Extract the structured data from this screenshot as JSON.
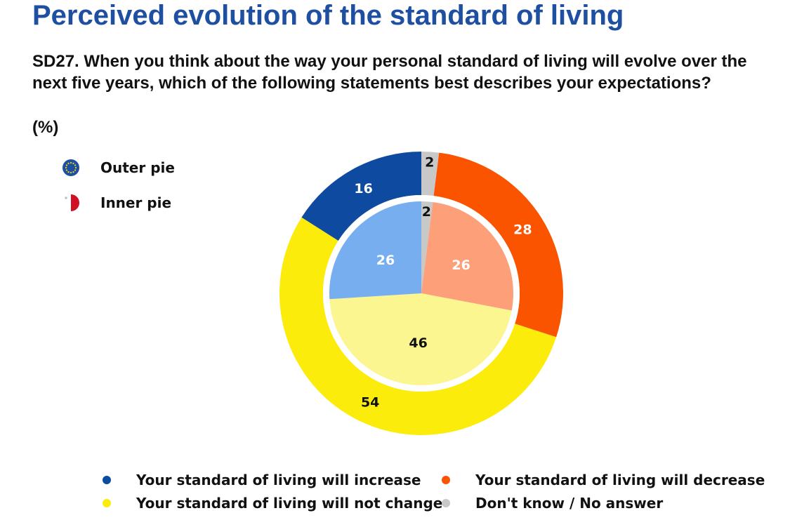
{
  "title": "Perceived evolution of the standard of living",
  "question": "SD27. When you think about the way your personal standard of living will evolve over the next five years, which of the following statements best describes your expectations?",
  "unit": "(%)",
  "pie_legend": {
    "outer_label": "Outer pie",
    "outer_icon": "eu-flag-icon",
    "inner_label": "Inner pie",
    "inner_icon": "malta-flag-icon"
  },
  "chart_data": {
    "type": "pie",
    "subtype": "nested-donut",
    "unit": "%",
    "categories": [
      "Your standard of living will increase",
      "Your standard of living will decrease",
      "Your standard of living will not change",
      "Don't know / No answer"
    ],
    "series": [
      {
        "name": "Outer pie",
        "values": [
          16,
          28,
          54,
          2
        ]
      },
      {
        "name": "Inner pie",
        "values": [
          26,
          26,
          46,
          2
        ]
      }
    ],
    "colors": {
      "outer": [
        "#0d4aa0",
        "#fa5400",
        "#fcec0c",
        "#c8c8c8"
      ],
      "inner": [
        "#76aef0",
        "#fda07a",
        "#fcf690",
        "#c8c8c8"
      ]
    },
    "legend_position": "bottom"
  },
  "legend": {
    "items": [
      {
        "label": "Your standard of living will increase",
        "color": "#0d4aa0"
      },
      {
        "label": "Your standard of living will decrease",
        "color": "#fa5400"
      },
      {
        "label": "Your standard of living will not change",
        "color": "#fcec0c"
      },
      {
        "label": "Don't know / No answer",
        "color": "#c8c8c8"
      }
    ]
  }
}
